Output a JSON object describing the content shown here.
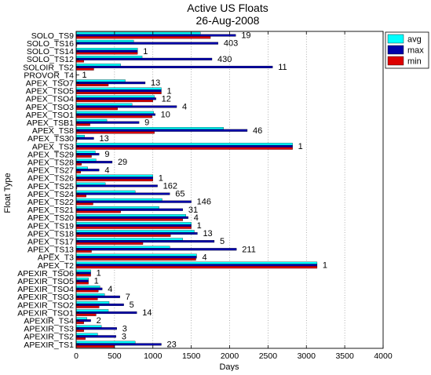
{
  "chart_data": {
    "type": "bar",
    "orientation": "horizontal",
    "title": "Active US Floats",
    "subtitle": "26-Aug-2008",
    "xlabel": "Days",
    "ylabel": "Float Type",
    "xlim": [
      0,
      4000
    ],
    "xticks": [
      0,
      500,
      1000,
      1500,
      2000,
      2500,
      3000,
      3500,
      4000
    ],
    "grid": "x-dotted",
    "legend_position": "top-right",
    "series": [
      {
        "name": "avg",
        "color": "#00ffff"
      },
      {
        "name": "max",
        "color": "#0000aa"
      },
      {
        "name": "min",
        "color": "#dd0000"
      }
    ],
    "categories": [
      {
        "label": "SOLO_TS9",
        "count": "19",
        "avg": 1620,
        "max": 2080,
        "min": 1750
      },
      {
        "label": "SOLO_TS16",
        "count": "403",
        "avg": 750,
        "max": 1850,
        "min": 10
      },
      {
        "label": "SOLO_TS14",
        "count": "1",
        "avg": 800,
        "max": 800,
        "min": 800
      },
      {
        "label": "SOLO_TS12",
        "count": "430",
        "avg": 860,
        "max": 1770,
        "min": 100
      },
      {
        "label": "SOLOIR_TS2",
        "count": "11",
        "avg": 580,
        "max": 2560,
        "min": 230
      },
      {
        "label": "PROVOR_T4",
        "count": "1",
        "avg": 5,
        "max": 5,
        "min": 5
      },
      {
        "label": "APEX_TSO7",
        "count": "13",
        "avg": 640,
        "max": 900,
        "min": 420
      },
      {
        "label": "APEX_TSO5",
        "count": "1",
        "avg": 1110,
        "max": 1110,
        "min": 1110
      },
      {
        "label": "APEX_TSO4",
        "count": "12",
        "avg": 1020,
        "max": 1040,
        "min": 1000
      },
      {
        "label": "APEX_TSO3",
        "count": "4",
        "avg": 730,
        "max": 1310,
        "min": 540
      },
      {
        "label": "APEX_TSO1",
        "count": "10",
        "avg": 1010,
        "max": 1030,
        "min": 990
      },
      {
        "label": "APEX_TSB1",
        "count": "9",
        "avg": 400,
        "max": 820,
        "min": 180
      },
      {
        "label": "APEX_TS8",
        "count": "46",
        "avg": 1920,
        "max": 2230,
        "min": 1020
      },
      {
        "label": "APEX_TS30",
        "count": "13",
        "avg": 110,
        "max": 230,
        "min": 10
      },
      {
        "label": "APEX_TS3",
        "count": "1",
        "avg": 2820,
        "max": 2820,
        "min": 2820
      },
      {
        "label": "APEX_TS29",
        "count": "9",
        "avg": 250,
        "max": 300,
        "min": 200
      },
      {
        "label": "APEX_TS28",
        "count": "29",
        "avg": 260,
        "max": 470,
        "min": 70
      },
      {
        "label": "APEX_TS27",
        "count": "4",
        "avg": 150,
        "max": 300,
        "min": 60
      },
      {
        "label": "APEX_TS26",
        "count": "1",
        "avg": 1000,
        "max": 1000,
        "min": 1000
      },
      {
        "label": "APEX_TS25",
        "count": "162",
        "avg": 380,
        "max": 1060,
        "min": 10
      },
      {
        "label": "APEX_TS24",
        "count": "65",
        "avg": 770,
        "max": 1220,
        "min": 130
      },
      {
        "label": "APEX_TS22",
        "count": "146",
        "avg": 1120,
        "max": 1500,
        "min": 220
      },
      {
        "label": "APEX_TS21",
        "count": "31",
        "avg": 1080,
        "max": 1390,
        "min": 580
      },
      {
        "label": "APEX_TS20",
        "count": "4",
        "avg": 1430,
        "max": 1460,
        "min": 1390
      },
      {
        "label": "APEX_TS19",
        "count": "1",
        "avg": 1500,
        "max": 1500,
        "min": 1500
      },
      {
        "label": "APEX_TS18",
        "count": "13",
        "avg": 1540,
        "max": 1580,
        "min": 1230
      },
      {
        "label": "APEX_TS17",
        "count": "5",
        "avg": 1390,
        "max": 1800,
        "min": 870
      },
      {
        "label": "APEX_TS13",
        "count": "211",
        "avg": 1220,
        "max": 2090,
        "min": 200
      },
      {
        "label": "APEX_T3",
        "count": "4",
        "avg": 1570,
        "max": 1570,
        "min": 1560
      },
      {
        "label": "APEX_T2",
        "count": "1",
        "avg": 3140,
        "max": 3140,
        "min": 3140
      },
      {
        "label": "APEXIR_TSO6",
        "count": "1",
        "avg": 190,
        "max": 190,
        "min": 190
      },
      {
        "label": "APEXIR_TSO5",
        "count": "1",
        "avg": 160,
        "max": 160,
        "min": 160
      },
      {
        "label": "APEXIR_TSO4",
        "count": "4",
        "avg": 310,
        "max": 340,
        "min": 290
      },
      {
        "label": "APEXIR_TSO3",
        "count": "7",
        "avg": 370,
        "max": 570,
        "min": 280
      },
      {
        "label": "APEXIR_TSO2",
        "count": "5",
        "avg": 430,
        "max": 620,
        "min": 300
      },
      {
        "label": "APEXIR_TSO1",
        "count": "14",
        "avg": 420,
        "max": 790,
        "min": 260
      },
      {
        "label": "APEXIR_TS4",
        "count": "2",
        "avg": 140,
        "max": 190,
        "min": 100
      },
      {
        "label": "APEXIR_TS3",
        "count": "3",
        "avg": 330,
        "max": 530,
        "min": 100
      },
      {
        "label": "APEXIR_TS2",
        "count": "3",
        "avg": 280,
        "max": 520,
        "min": 120
      },
      {
        "label": "APEXIR_TS1",
        "count": "23",
        "avg": 770,
        "max": 1110,
        "min": 500
      }
    ]
  }
}
